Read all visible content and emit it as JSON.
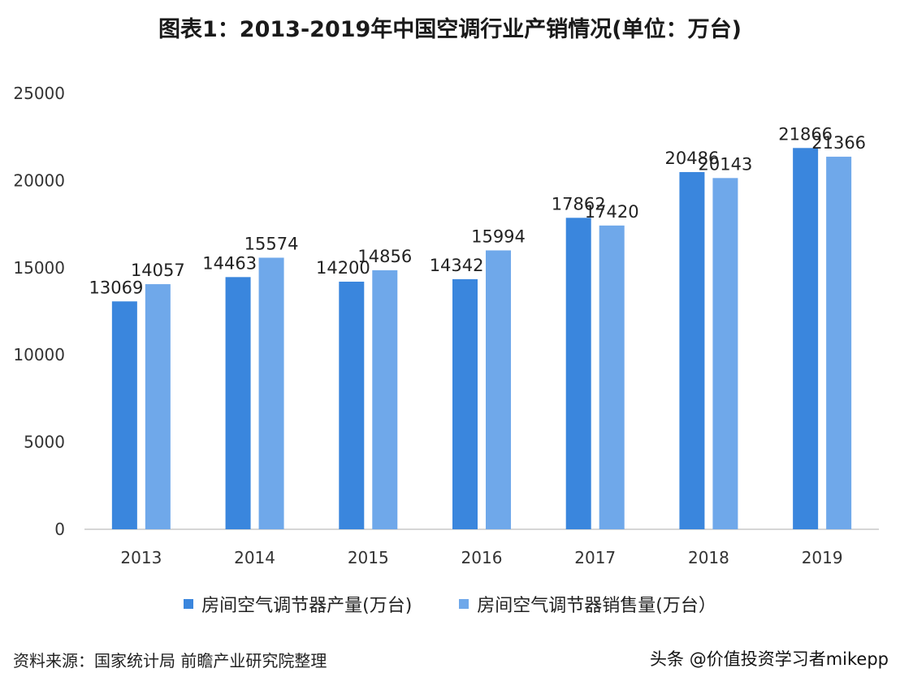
{
  "chart_data": {
    "type": "bar",
    "title": "图表1：2013-2019年中国空调行业产销情况(单位：万台)",
    "categories": [
      "2013",
      "2014",
      "2015",
      "2016",
      "2017",
      "2018",
      "2019"
    ],
    "series": [
      {
        "name": "房间空气调节器产量(万台)",
        "values": [
          13069,
          14463,
          14200,
          14342,
          17862,
          20486,
          21866
        ],
        "color": "#3a86dd"
      },
      {
        "name": "房间空气调节器销售量(万台）",
        "values": [
          14057,
          15574,
          14856,
          15994,
          17420,
          20143,
          21366
        ],
        "color": "#6fa8ea"
      }
    ],
    "ylim": [
      0,
      25000
    ],
    "yticks": [
      0,
      5000,
      10000,
      15000,
      20000,
      25000
    ],
    "grid": false,
    "legend_position": "bottom"
  },
  "footer": {
    "source": "资料来源：国家统计局 前瞻产业研究院整理",
    "credit": "头条 @价值投资学习者mikepp"
  }
}
